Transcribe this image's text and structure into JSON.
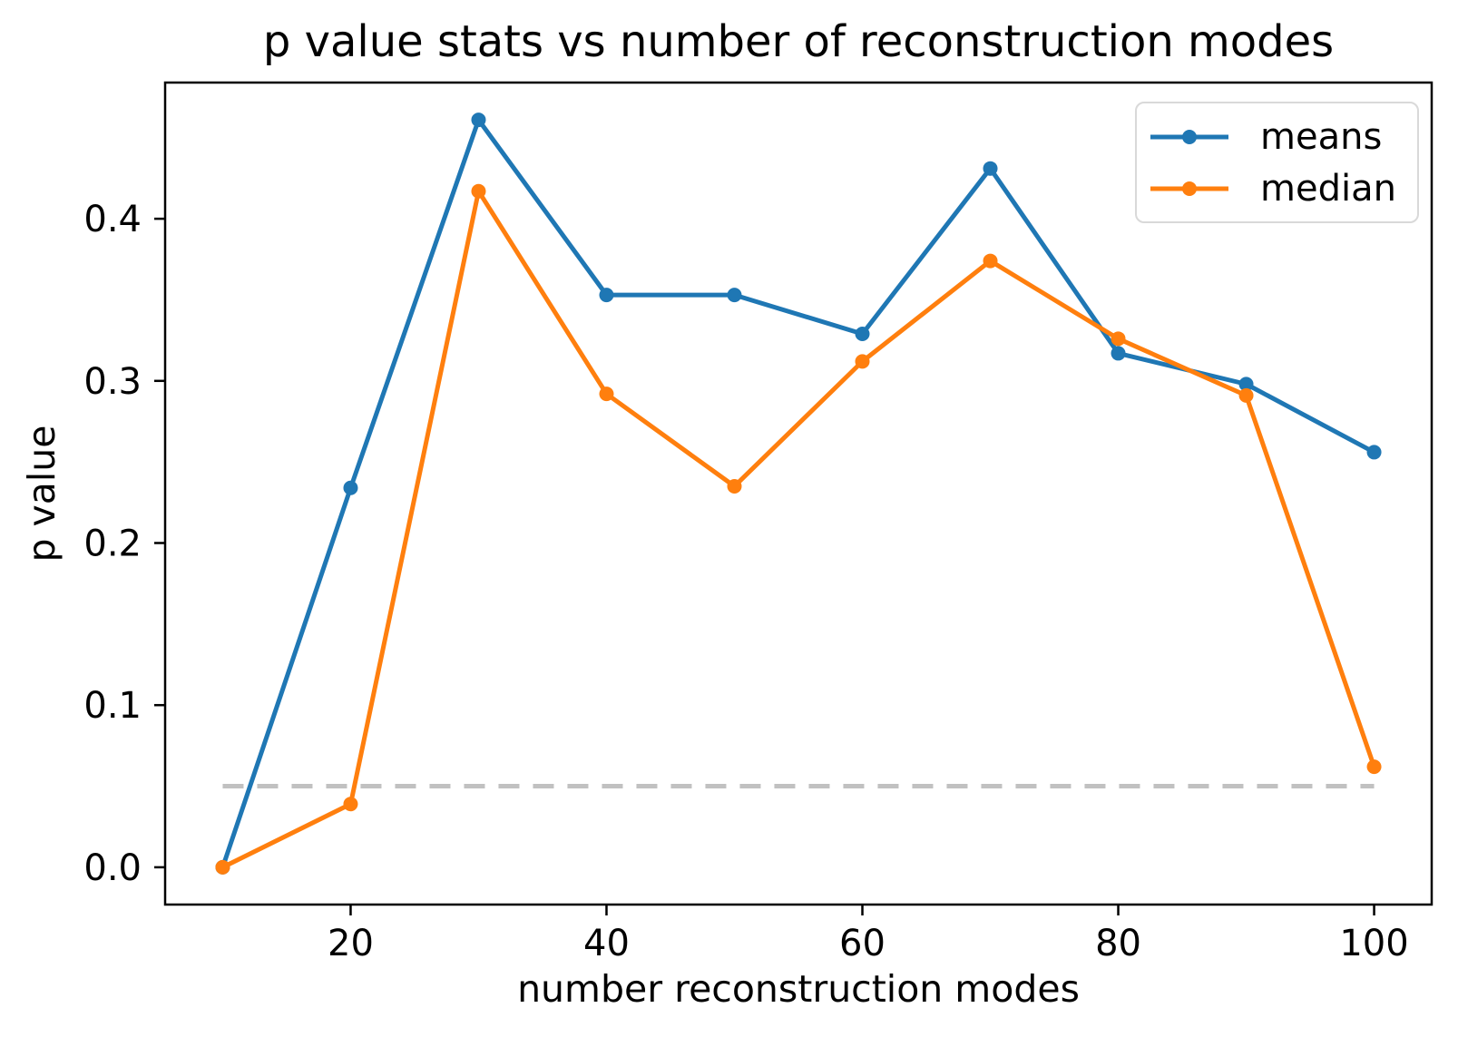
{
  "chart_data": {
    "type": "line",
    "title": "p value stats vs number of reconstruction modes",
    "xlabel": "number reconstruction modes",
    "ylabel": "p value",
    "x": [
      10,
      20,
      30,
      40,
      50,
      60,
      70,
      80,
      90,
      100
    ],
    "series": [
      {
        "name": "means",
        "color": "#1f77b4",
        "values": [
          0.0,
          0.234,
          0.461,
          0.353,
          0.353,
          0.329,
          0.431,
          0.317,
          0.298,
          0.256
        ]
      },
      {
        "name": "median",
        "color": "#ff7f0e",
        "values": [
          0.0,
          0.039,
          0.417,
          0.292,
          0.235,
          0.312,
          0.374,
          0.326,
          0.291,
          0.062
        ]
      }
    ],
    "reference_line": {
      "y": 0.05,
      "x_start": 10,
      "x_end": 100,
      "color": "#c1c1c1",
      "style": "dashed"
    },
    "xticks": {
      "values": [
        20,
        40,
        60,
        80,
        100
      ],
      "labels": [
        "20",
        "40",
        "60",
        "80",
        "100"
      ]
    },
    "yticks": {
      "values": [
        0.0,
        0.1,
        0.2,
        0.3,
        0.4
      ],
      "labels": [
        "0.0",
        "0.1",
        "0.2",
        "0.3",
        "0.4"
      ]
    },
    "xlim": [
      5.5,
      104.5
    ],
    "ylim": [
      -0.023,
      0.484
    ],
    "grid": false,
    "legend": {
      "position": "upper right",
      "entries": [
        "means",
        "median"
      ]
    },
    "axis_color": "#000000"
  }
}
